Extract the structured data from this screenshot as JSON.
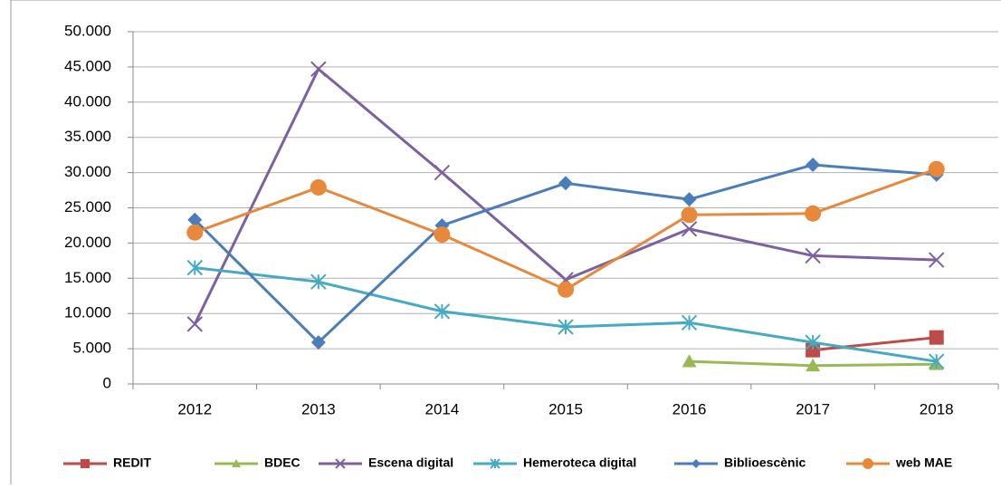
{
  "chart_data": {
    "type": "line",
    "categories": [
      "2012",
      "2013",
      "2014",
      "2015",
      "2016",
      "2017",
      "2018"
    ],
    "series": [
      {
        "name": "REDIT",
        "color": "#be4b48",
        "marker": "square",
        "values": [
          null,
          null,
          null,
          null,
          null,
          4800,
          6600
        ]
      },
      {
        "name": "BDEC",
        "color": "#98b954",
        "marker": "triangle",
        "values": [
          null,
          null,
          null,
          null,
          3200,
          2600,
          2800
        ]
      },
      {
        "name": "Escena digital",
        "color": "#7d60a0",
        "marker": "x",
        "values": [
          8500,
          44700,
          30000,
          14800,
          22000,
          18200,
          17600
        ]
      },
      {
        "name": "Hemeroteca digital",
        "color": "#46aac5",
        "marker": "asterisk",
        "values": [
          16500,
          14500,
          10300,
          8100,
          8700,
          5900,
          3200
        ]
      },
      {
        "name": "Biblioescènic",
        "color": "#4a7ebb",
        "marker": "diamond",
        "values": [
          23300,
          5900,
          22500,
          28500,
          26200,
          31100,
          29700
        ]
      },
      {
        "name": "web MAE",
        "color": "#e8883a",
        "marker": "circle",
        "values": [
          21500,
          27900,
          21200,
          13400,
          24000,
          24200,
          30500
        ]
      }
    ],
    "ylim": [
      0,
      50000
    ],
    "yticks": [
      0,
      {
        "value": 5000,
        "label": "5.000"
      },
      {
        "value": 10000,
        "label": "10.000"
      },
      {
        "value": 15000,
        "label": "15.000"
      },
      {
        "value": 20000,
        "label": "20.000"
      },
      {
        "value": 25000,
        "label": "25.000"
      },
      {
        "value": 30000,
        "label": "30.000"
      },
      {
        "value": 35000,
        "label": "35.000"
      },
      {
        "value": 40000,
        "label": "40.000"
      },
      {
        "value": 45000,
        "label": "45.000"
      },
      {
        "value": 50000,
        "label": "50.000"
      }
    ],
    "grid": true,
    "legend": "bottom"
  }
}
